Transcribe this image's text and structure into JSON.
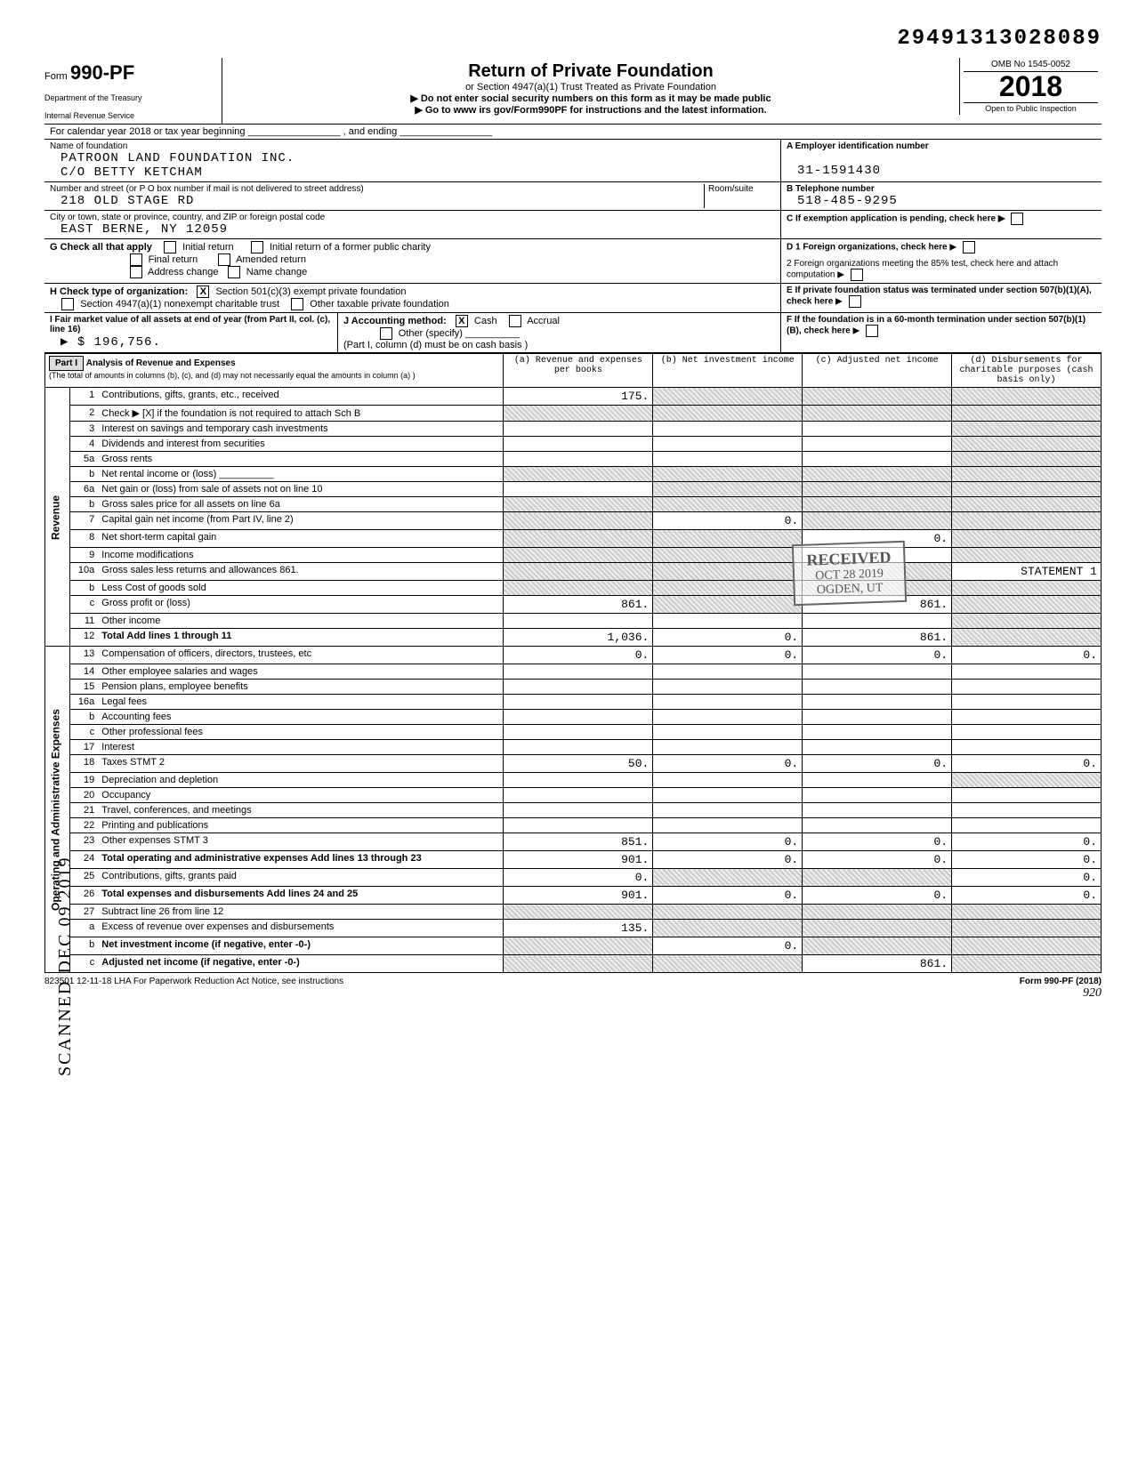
{
  "doc_number": "29491313028089",
  "form": {
    "prefix": "Form",
    "number": "990-PF",
    "dept": "Department of the Treasury",
    "irs": "Internal Revenue Service"
  },
  "header": {
    "title": "Return of Private Foundation",
    "sub1": "or Section 4947(a)(1) Trust Treated as Private Foundation",
    "sub2": "▶ Do not enter social security numbers on this form as it may be made public",
    "sub3": "▶ Go to www irs gov/Form990PF for instructions and the latest information."
  },
  "yearbox": {
    "omb": "OMB No 1545-0052",
    "year": "2018",
    "inspection": "Open to Public Inspection"
  },
  "calendar_line": "For calendar year 2018 or tax year beginning _________________ , and ending _________________",
  "foundation": {
    "name_label": "Name of foundation",
    "name1": "PATROON LAND FOUNDATION INC.",
    "name2": "C/O BETTY KETCHAM",
    "addr_label": "Number and street (or P O  box number if mail is not delivered to street address)",
    "room_label": "Room/suite",
    "addr": "218 OLD STAGE RD",
    "city_label": "City or town, state or province, country, and ZIP or foreign postal code",
    "city": "EAST BERNE, NY  12059"
  },
  "rightcol": {
    "a_label": "A Employer identification number",
    "ein": "31-1591430",
    "b_label": "B Telephone number",
    "phone": "518-485-9295",
    "c_label": "C If exemption application is pending, check here",
    "d1_label": "D 1 Foreign organizations, check here",
    "d2_label": "2 Foreign organizations meeting the 85% test, check here and attach computation",
    "e_label": "E If private foundation status was terminated under section 507(b)(1)(A), check here",
    "f_label": "F If the foundation is in a 60-month termination under section 507(b)(1)(B), check here"
  },
  "g_line": "G  Check all that apply",
  "g_opts": [
    "Initial return",
    "Initial return of a former public charity",
    "Final return",
    "Amended return",
    "Address change",
    "Name change"
  ],
  "h_line": "H  Check type of organization:",
  "h_opt1": "Section 501(c)(3) exempt private foundation",
  "h_opt2": "Section 4947(a)(1) nonexempt charitable trust",
  "h_opt3": "Other taxable private foundation",
  "i_line": "I  Fair market value of all assets at end of year (from Part II, col. (c), line 16)",
  "i_value": "▶ $                196,756.",
  "j_line": "J  Accounting method:",
  "j_cash": "Cash",
  "j_accrual": "Accrual",
  "j_other": "Other (specify) __________",
  "j_note": "(Part I, column (d) must be on cash basis )",
  "part1": {
    "label": "Part I",
    "title": "Analysis of Revenue and Expenses",
    "desc": "(The total of amounts in columns (b), (c), and (d) may not necessarily equal the amounts in column (a) )",
    "col_a": "(a) Revenue and expenses per books",
    "col_b": "(b) Net investment income",
    "col_c": "(c) Adjusted net income",
    "col_d": "(d) Disbursements for charitable purposes (cash basis only)"
  },
  "vert": {
    "revenue": "Revenue",
    "expenses": "Operating and Administrative Expenses"
  },
  "lines": {
    "l1": {
      "n": "1",
      "t": "Contributions, gifts, grants, etc., received",
      "a": "175.",
      "b": "",
      "c": "",
      "d": ""
    },
    "l2": {
      "n": "2",
      "t": "Check ▶ [X] if the foundation is not required to attach Sch B",
      "a": "",
      "b": "",
      "c": "",
      "d": ""
    },
    "l3": {
      "n": "3",
      "t": "Interest on savings and temporary cash investments",
      "a": "",
      "b": "",
      "c": "",
      "d": ""
    },
    "l4": {
      "n": "4",
      "t": "Dividends and interest from securities",
      "a": "",
      "b": "",
      "c": "",
      "d": ""
    },
    "l5a": {
      "n": "5a",
      "t": "Gross rents",
      "a": "",
      "b": "",
      "c": "",
      "d": ""
    },
    "l5b": {
      "n": "b",
      "t": "Net rental income or (loss) __________",
      "a": "",
      "b": "",
      "c": "",
      "d": ""
    },
    "l6a": {
      "n": "6a",
      "t": "Net gain or (loss) from sale of assets not on line 10",
      "a": "",
      "b": "",
      "c": "",
      "d": ""
    },
    "l6b": {
      "n": "b",
      "t": "Gross sales price for all assets on line 6a",
      "a": "",
      "b": "",
      "c": "",
      "d": ""
    },
    "l7": {
      "n": "7",
      "t": "Capital gain net income (from Part IV, line 2)",
      "a": "",
      "b": "0.",
      "c": "",
      "d": ""
    },
    "l8": {
      "n": "8",
      "t": "Net short-term capital gain",
      "a": "",
      "b": "",
      "c": "0.",
      "d": ""
    },
    "l9": {
      "n": "9",
      "t": "Income modifications",
      "a": "",
      "b": "",
      "c": "",
      "d": ""
    },
    "l10a": {
      "n": "10a",
      "t": "Gross sales less returns and allowances           861.",
      "a": "",
      "b": "",
      "c": "",
      "d": "STATEMENT 1"
    },
    "l10b": {
      "n": "b",
      "t": "Less  Cost of goods sold",
      "a": "",
      "b": "",
      "c": "",
      "d": ""
    },
    "l10c": {
      "n": "c",
      "t": "Gross profit or (loss)",
      "a": "861.",
      "b": "",
      "c": "861.",
      "d": ""
    },
    "l11": {
      "n": "11",
      "t": "Other income",
      "a": "",
      "b": "",
      "c": "",
      "d": ""
    },
    "l12": {
      "n": "12",
      "t": "Total  Add lines 1 through 11",
      "a": "1,036.",
      "b": "0.",
      "c": "861.",
      "d": "",
      "bold": true
    },
    "l13": {
      "n": "13",
      "t": "Compensation of officers, directors, trustees, etc",
      "a": "0.",
      "b": "0.",
      "c": "0.",
      "d": "0."
    },
    "l14": {
      "n": "14",
      "t": "Other employee salaries and wages",
      "a": "",
      "b": "",
      "c": "",
      "d": ""
    },
    "l15": {
      "n": "15",
      "t": "Pension plans, employee benefits",
      "a": "",
      "b": "",
      "c": "",
      "d": ""
    },
    "l16a": {
      "n": "16a",
      "t": "Legal fees",
      "a": "",
      "b": "",
      "c": "",
      "d": ""
    },
    "l16b": {
      "n": "b",
      "t": "Accounting fees",
      "a": "",
      "b": "",
      "c": "",
      "d": ""
    },
    "l16c": {
      "n": "c",
      "t": "Other professional fees",
      "a": "",
      "b": "",
      "c": "",
      "d": ""
    },
    "l17": {
      "n": "17",
      "t": "Interest",
      "a": "",
      "b": "",
      "c": "",
      "d": ""
    },
    "l18": {
      "n": "18",
      "t": "Taxes                          STMT 2",
      "a": "50.",
      "b": "0.",
      "c": "0.",
      "d": "0."
    },
    "l19": {
      "n": "19",
      "t": "Depreciation and depletion",
      "a": "",
      "b": "",
      "c": "",
      "d": ""
    },
    "l20": {
      "n": "20",
      "t": "Occupancy",
      "a": "",
      "b": "",
      "c": "",
      "d": ""
    },
    "l21": {
      "n": "21",
      "t": "Travel, conferences, and meetings",
      "a": "",
      "b": "",
      "c": "",
      "d": ""
    },
    "l22": {
      "n": "22",
      "t": "Printing and publications",
      "a": "",
      "b": "",
      "c": "",
      "d": ""
    },
    "l23": {
      "n": "23",
      "t": "Other expenses                 STMT 3",
      "a": "851.",
      "b": "0.",
      "c": "0.",
      "d": "0."
    },
    "l24": {
      "n": "24",
      "t": "Total operating and administrative expenses  Add lines 13 through 23",
      "a": "901.",
      "b": "0.",
      "c": "0.",
      "d": "0.",
      "bold": true
    },
    "l25": {
      "n": "25",
      "t": "Contributions, gifts, grants paid",
      "a": "0.",
      "b": "",
      "c": "",
      "d": "0."
    },
    "l26": {
      "n": "26",
      "t": "Total expenses and disbursements Add lines 24 and 25",
      "a": "901.",
      "b": "0.",
      "c": "0.",
      "d": "0.",
      "bold": true
    },
    "l27": {
      "n": "27",
      "t": "Subtract line 26 from line 12",
      "a": "",
      "b": "",
      "c": "",
      "d": ""
    },
    "l27a": {
      "n": "a",
      "t": "Excess of revenue over expenses and disbursements",
      "a": "135.",
      "b": "",
      "c": "",
      "d": ""
    },
    "l27b": {
      "n": "b",
      "t": "Net investment income (if negative, enter -0-)",
      "a": "",
      "b": "0.",
      "c": "",
      "d": "",
      "bold": true
    },
    "l27c": {
      "n": "c",
      "t": "Adjusted net income (if negative, enter -0-)",
      "a": "",
      "b": "",
      "c": "861.",
      "d": "",
      "bold": true
    }
  },
  "stamps": {
    "received": "RECEIVED",
    "date": "OCT 28 2019",
    "ogden": "OGDEN, UT",
    "scanned": "SCANNED DEC 09 2019"
  },
  "shaded_cells": {
    "l1": [
      "b",
      "c",
      "d"
    ],
    "l2": [
      "a",
      "b",
      "c",
      "d"
    ],
    "l3": [
      "d"
    ],
    "l4": [
      "d"
    ],
    "l5a": [
      "d"
    ],
    "l5b": [
      "a",
      "b",
      "c",
      "d"
    ],
    "l6a": [
      "b",
      "c",
      "d"
    ],
    "l6b": [
      "a",
      "b",
      "c",
      "d"
    ],
    "l7": [
      "a",
      "c",
      "d"
    ],
    "l8": [
      "a",
      "b",
      "d"
    ],
    "l9": [
      "a",
      "b",
      "d"
    ],
    "l10a": [
      "a",
      "b",
      "c"
    ],
    "l10b": [
      "a",
      "b",
      "c",
      "d"
    ],
    "l10c": [
      "b",
      "d"
    ],
    "l11": [
      "d"
    ],
    "l12": [
      "d"
    ],
    "l19": [
      "d"
    ],
    "l25": [
      "b",
      "c"
    ],
    "l27": [
      "a",
      "b",
      "c",
      "d"
    ],
    "l27a": [
      "b",
      "c",
      "d"
    ],
    "l27b": [
      "a",
      "c",
      "d"
    ],
    "l27c": [
      "a",
      "b",
      "d"
    ]
  },
  "footer": {
    "left": "823501  12-11-18   LHA   For Paperwork Reduction Act Notice, see instructions",
    "right": "Form 990-PF (2018)",
    "pg": "920"
  },
  "colors": {
    "border": "#000000",
    "shade": "#cccccc",
    "bg": "#ffffff"
  }
}
